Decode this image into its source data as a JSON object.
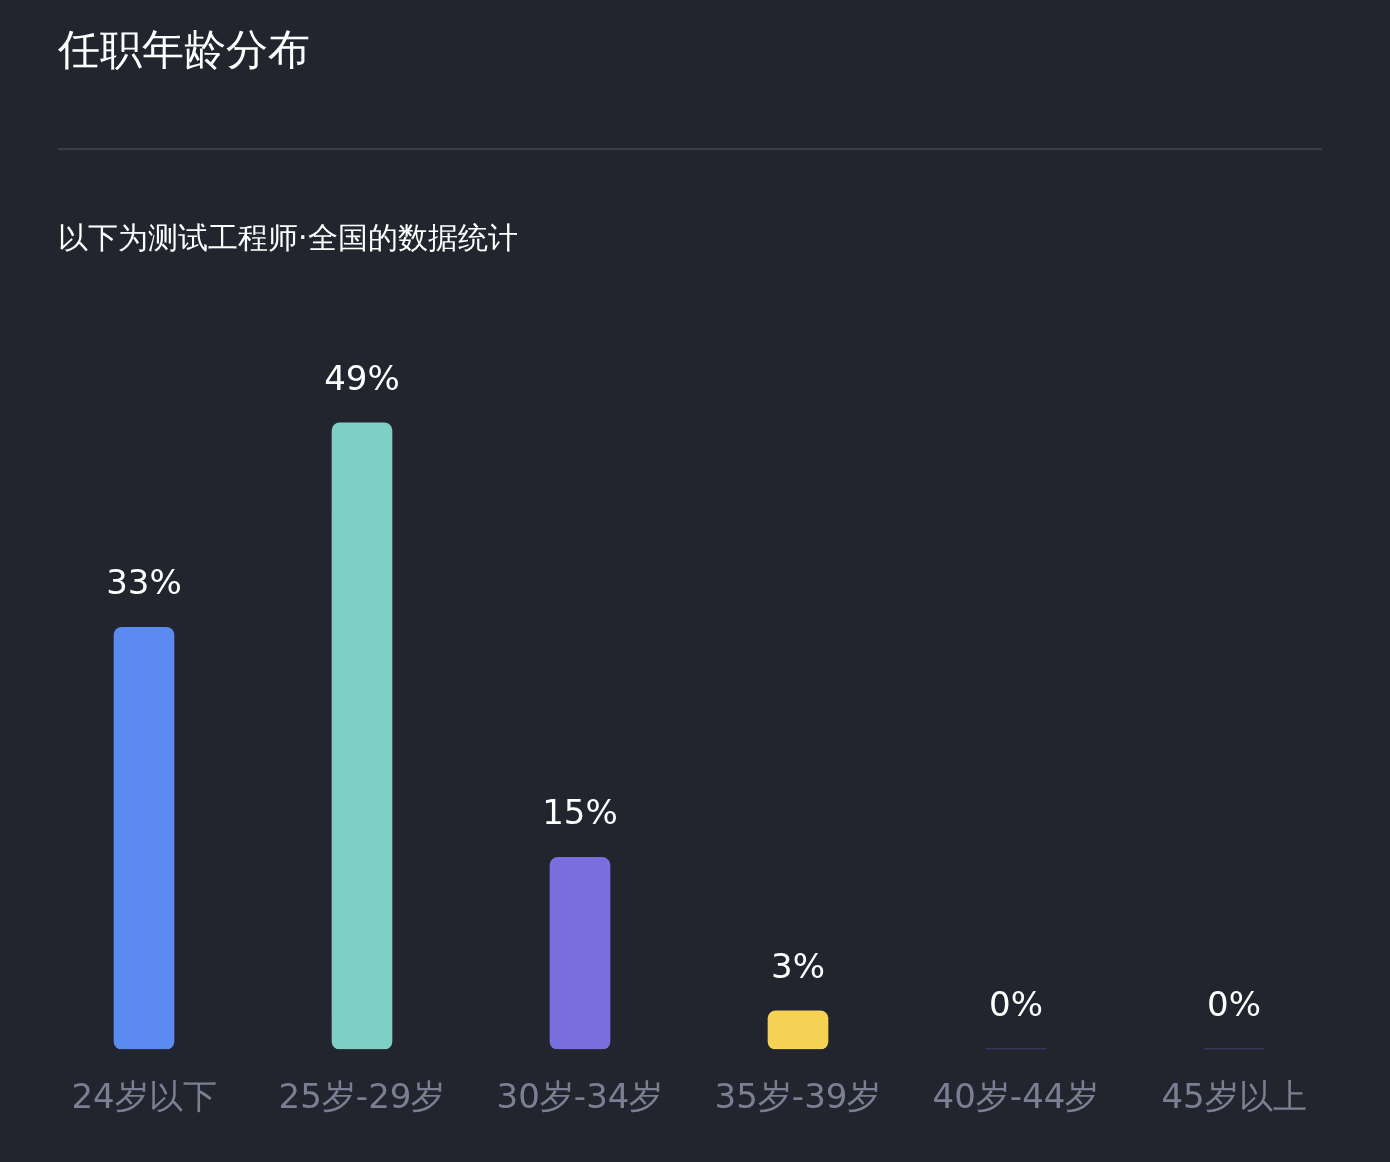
{
  "chart_data": {
    "type": "bar",
    "title": "任职年龄分布",
    "subtitle": "以下为测试工程师·全国的数据统计",
    "categories": [
      "24岁以下",
      "25岁-29岁",
      "30岁-34岁",
      "35岁-39岁",
      "40岁-44岁",
      "45岁以上"
    ],
    "values": [
      33,
      49,
      15,
      3,
      0,
      0
    ],
    "colors": [
      "#5b8af0",
      "#7ecfc5",
      "#7a6fde",
      "#f5d253",
      "#7a6fde",
      "#7a6fde"
    ],
    "value_labels": [
      "33%",
      "49%",
      "15%",
      "3%",
      "0%",
      "0%"
    ],
    "legend": false
  }
}
